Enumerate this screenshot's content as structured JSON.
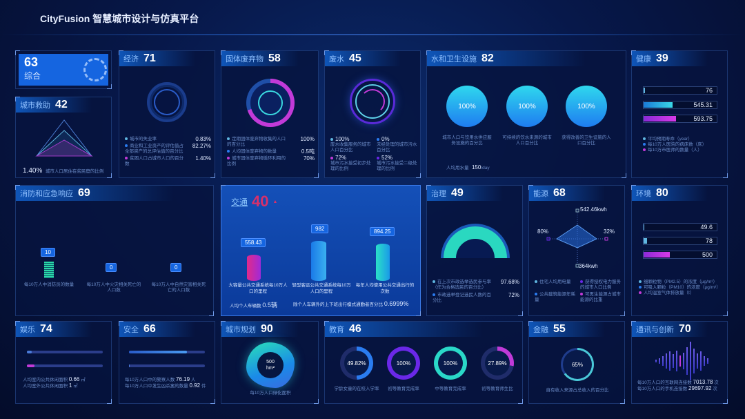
{
  "app": {
    "title": "CityFusion 智慧城市设计与仿真平台"
  },
  "overall": {
    "score": "63",
    "label": "综合",
    "icon": "network-icon"
  },
  "rescue": {
    "title": "城市救助",
    "score": "42",
    "value": "1.40%",
    "label": "城市人口居住在贫民窟的比例"
  },
  "economy": {
    "title": "经济",
    "score": "71",
    "items": [
      {
        "label": "城市的失业率",
        "value": "0.83%"
      },
      {
        "label": "商业和工业资产的评估值占全部资产的总评估值的百分比",
        "value": "82.27%"
      },
      {
        "label": "贫困人口占城市人口的百分数",
        "value": "1.40%"
      }
    ]
  },
  "waste": {
    "title": "固体废弃物",
    "score": "58",
    "items": [
      {
        "label": "定期固体废弃物收集的人口的百分比",
        "value": "100%"
      },
      {
        "label": "人均固体废弃物的数量",
        "value": "0.5吨"
      },
      {
        "label": "城市固体废弃物循环利用的比例",
        "value": "70%"
      }
    ]
  },
  "wastewater": {
    "title": "废水",
    "score": "45",
    "items": [
      {
        "value": "100%",
        "label": "废水收集服务的城市人口百分比"
      },
      {
        "value": "0%",
        "label": "未经处理的城市污水百分比"
      },
      {
        "value": "72%",
        "label": "城市污水接受初步处理的比例"
      },
      {
        "value": "52%",
        "label": "城市污水接受二级处理的比例"
      }
    ]
  },
  "water": {
    "title": "水和卫生设施",
    "score": "82",
    "balls": [
      {
        "value": "100%",
        "label": "城市人口与饮用水供应服务设施的百分比"
      },
      {
        "value": "100%",
        "label": "可持续的饮水来源的城市人口百分比"
      },
      {
        "value": "100%",
        "label": "获得改善的卫生设施的人口百分比"
      }
    ],
    "usage_label": "人均用水量",
    "usage_value": "150",
    "usage_unit": "/day"
  },
  "health": {
    "title": "健康",
    "score": "39",
    "bars": [
      {
        "value": "76",
        "fill": 0.02
      },
      {
        "value": "545.31",
        "fill": 0.4
      },
      {
        "value": "593.75",
        "fill": 0.44
      }
    ],
    "legend": [
      "平均预期寿命（year）",
      "每10万人医院的病床数（床）",
      "每10万市医师的数量（人）"
    ]
  },
  "fire": {
    "title": "消防和应急响应",
    "score": "69",
    "items": [
      {
        "value": "10",
        "label": "每10万人中消防员的数量"
      },
      {
        "value": "0",
        "label": "每10万人中火灾相关死亡的人口数"
      },
      {
        "value": "0",
        "label": "每10万人中自然灾害相关死亡的人口数"
      }
    ]
  },
  "traffic": {
    "title": "交通",
    "score": "40",
    "trend": "▲",
    "items": [
      {
        "value": "558.43",
        "label": "大容量公共交通系统每10万人口的里程"
      },
      {
        "value": "982",
        "label": "轻型客运公共交通系统每10万人口的里程"
      },
      {
        "value": "894.25",
        "label": "每年人均使用公共交通出行的次数"
      }
    ],
    "cars_label": "人均个人车辆数",
    "cars_value": "0.5辆",
    "commute_label": "除个人车辆外的上下班出行模式通勤者百分比",
    "commute_value": "0.6999%"
  },
  "governance": {
    "title": "治理",
    "score": "49",
    "gauge": 0.9768,
    "items": [
      {
        "label": "在上次市政选举选民参与率（作为合格选民的百分比）",
        "value": "97.68%"
      },
      {
        "label": "市政选举登记选民人数的百分比",
        "value": "72%"
      }
    ]
  },
  "energy": {
    "title": "能源",
    "score": "68",
    "radar": {
      "top": "542.46kwh",
      "right": "32%",
      "bottom": "364kwh",
      "left": "80%"
    },
    "legend": [
      "住宅人均用电量",
      "获得授权电力服务的城市人口比例",
      "公共建筑能源年耗量",
      "可再生能源占城市能源的比重"
    ]
  },
  "environment": {
    "title": "环境",
    "score": "80",
    "bars": [
      {
        "value": "49.6",
        "fill": 0.01
      },
      {
        "value": "78",
        "fill": 0.05
      },
      {
        "value": "500",
        "fill": 0.36
      }
    ],
    "legend": [
      "细颗粒物（PM2.5）的浓度（μg/m³）",
      "可吸入颗粒（PM10）的浓度（μg/m³）",
      "人均温室气体排放量（t）"
    ]
  },
  "leisure": {
    "title": "娱乐",
    "score": "74",
    "bars": [
      0.06,
      0.1
    ],
    "items": [
      {
        "label": "人均室内公共休闲面积",
        "value": "0.66",
        "unit": "㎡"
      },
      {
        "label": "人均室外公共休闲面积",
        "value": "1",
        "unit": "㎡"
      }
    ]
  },
  "safety": {
    "title": "安全",
    "score": "66",
    "bars": [
      0.76,
      0.01
    ],
    "items": [
      {
        "label": "每10万人口中的警察人数",
        "value": "76.19",
        "unit": "人"
      },
      {
        "label": "每10万人口中发生凶杀案的数量",
        "value": "0.92",
        "unit": "件"
      }
    ]
  },
  "planning": {
    "title": "城市规划",
    "score": "90",
    "value": "500",
    "unit": "hm²",
    "label": "每10万人口绿化面积"
  },
  "education": {
    "title": "教育",
    "score": "46",
    "rings": [
      {
        "value": "49.82%",
        "pct": 49.82,
        "color": "#2a7cf0",
        "label": "学龄女童的在校入学率"
      },
      {
        "value": "100%",
        "pct": 100,
        "color": "#6a28e8",
        "label": "初等教育完成率"
      },
      {
        "value": "100%",
        "pct": 100,
        "color": "#2ad8c8",
        "label": "中等教育完成率"
      },
      {
        "value": "27.89%",
        "pct": 27.89,
        "color": "#c03ad8",
        "label": "初等教育师生比"
      }
    ]
  },
  "finance": {
    "title": "金融",
    "score": "55",
    "value": "65%",
    "pct": 65,
    "label": "自有收入来源占总收入的百分比"
  },
  "comms": {
    "title": "通讯与创新",
    "score": "70",
    "items": [
      {
        "label": "每10万人口的互联网连接数",
        "value": "7013.78",
        "unit": "次"
      },
      {
        "label": "每10万人口的手机连接数",
        "value": "29697.92",
        "unit": "次"
      }
    ]
  },
  "colors": {
    "accent": "#1565e0",
    "cyan": "#2ad8e8",
    "magenta": "#c23ad8",
    "purple": "#6a28e8"
  }
}
